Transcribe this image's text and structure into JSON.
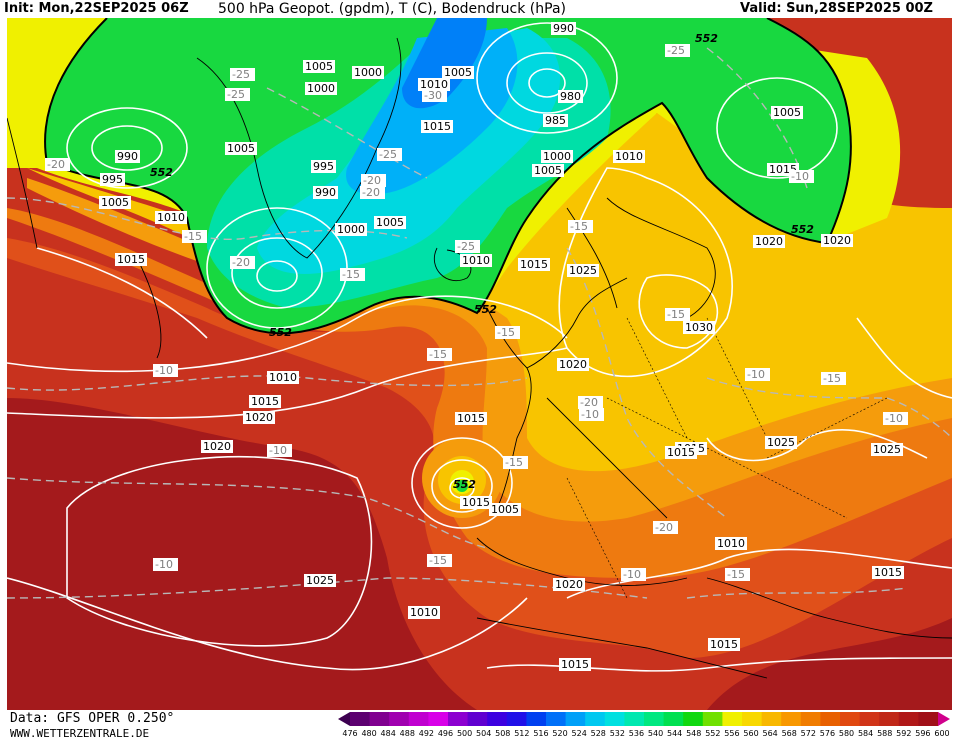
{
  "header": {
    "init": "Init: Mon,22SEP2025 06Z",
    "title": "500 hPa Geopot. (gpdm), T (C), Bodendruck (hPa)",
    "valid": "Valid: Sun,28SEP2025 00Z"
  },
  "footer": {
    "data_source": "Data: GFS OPER 0.250°",
    "website": "WWW.WETTERZENTRALE.DE"
  },
  "legend": {
    "values": [
      "476",
      "480",
      "484",
      "488",
      "492",
      "496",
      "500",
      "504",
      "508",
      "512",
      "516",
      "520",
      "524",
      "528",
      "532",
      "536",
      "540",
      "544",
      "548",
      "552",
      "556",
      "560",
      "564",
      "568",
      "572",
      "576",
      "580",
      "584",
      "588",
      "592",
      "596",
      "600"
    ],
    "colors": [
      "#3c0050",
      "#5c0070",
      "#800090",
      "#a000b0",
      "#c000d0",
      "#d800e8",
      "#8c00d0",
      "#6000d0",
      "#3c00e0",
      "#2010e8",
      "#0040f0",
      "#0070f8",
      "#00a0f8",
      "#00c8f0",
      "#00e0e0",
      "#00e8b0",
      "#00e880",
      "#00e050",
      "#10d810",
      "#70e000",
      "#f0f000",
      "#f8d800",
      "#f8b800",
      "#f89800",
      "#f07c00",
      "#e86000",
      "#e04810",
      "#d03418",
      "#c02818",
      "#b01818",
      "#a01018",
      "#d0008c"
    ]
  },
  "map": {
    "pressure_labels": [
      "990",
      "1005",
      "1000",
      "1005",
      "1010",
      "1015",
      "985",
      "980",
      "990",
      "1000",
      "1005",
      "1005",
      "995",
      "990",
      "1000",
      "1005",
      "1010",
      "1015",
      "1010",
      "1005",
      "995",
      "1020",
      "1000",
      "1005",
      "1010",
      "1015",
      "1025",
      "1030",
      "1020",
      "1020",
      "1025",
      "1015",
      "1020",
      "1010",
      "1015",
      "1020",
      "1025",
      "1015",
      "1005",
      "1010",
      "1015",
      "1015",
      "1010",
      "1025",
      "1020",
      "1015",
      "1015",
      "1015",
      "1015"
    ],
    "temp_labels": [
      "-25",
      "-20",
      "-25",
      "-30",
      "-20",
      "-25",
      "-20",
      "-15",
      "-15",
      "-25",
      "-20",
      "-15",
      "-15",
      "-10",
      "-10",
      "-15",
      "-20",
      "-15",
      "-10",
      "-10",
      "-15",
      "-15",
      "-10",
      "-10",
      "-10",
      "-10",
      "-15",
      "-20",
      "-25",
      "-15"
    ],
    "geopot_labels": [
      "552",
      "552",
      "552",
      "552",
      "552",
      "552"
    ],
    "colors": {
      "deep_red": "#a41a1c",
      "red": "#c8321e",
      "orange_red": "#e0501a",
      "orange": "#ee7a10",
      "light_orange": "#f59c0c",
      "yellow_orange": "#f8c400",
      "yellow": "#f0f000",
      "green": "#18d840",
      "green2": "#00e070",
      "cyan_green": "#00e0a8",
      "cyan": "#00d8e0",
      "light_blue": "#00b0f8",
      "blue": "#0080f8"
    }
  }
}
